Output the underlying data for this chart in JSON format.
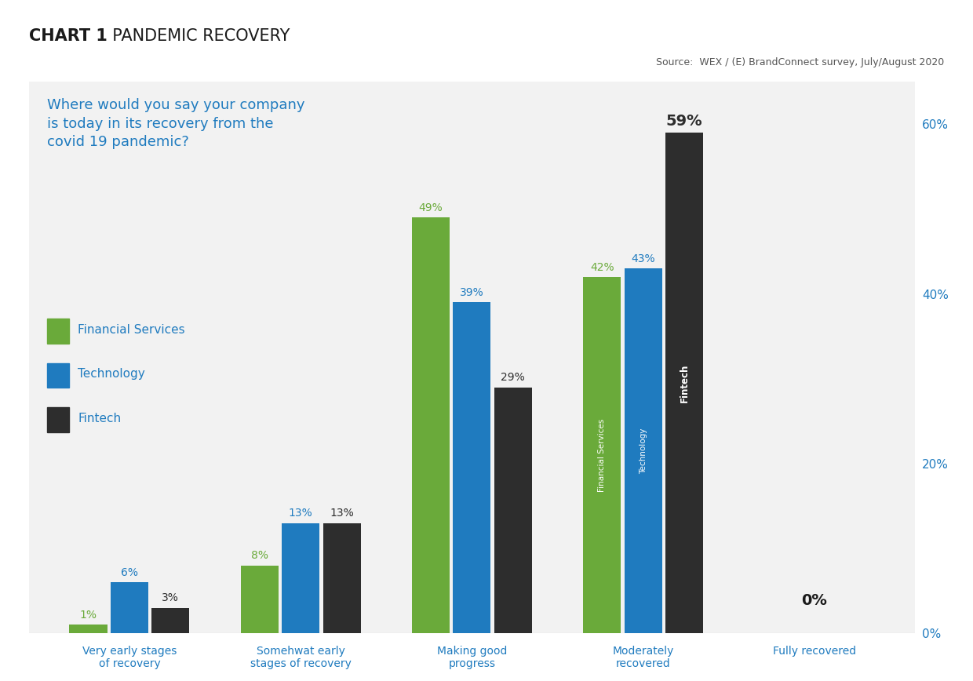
{
  "title_bold": "CHART 1",
  "title_regular": "  PANDEMIC RECOVERY",
  "source": "Source:  WEX / (E) BrandConnect survey, July/August 2020",
  "question": "Where would you say your company\nis today in its recovery from the\ncovid 19 pandemic?",
  "categories": [
    "Very early stages\nof recovery",
    "Somehwat early\nstages of recovery",
    "Making good\nprogress",
    "Moderately\nrecovered",
    "Fully recovered"
  ],
  "financial_services": [
    1,
    8,
    49,
    42,
    0
  ],
  "technology": [
    6,
    13,
    39,
    43,
    0
  ],
  "fintech": [
    3,
    13,
    29,
    59,
    0
  ],
  "colors": {
    "financial_services": "#6aaa3a",
    "technology": "#1f7bbf",
    "fintech": "#2d2d2d",
    "background": "#f2f2f2",
    "title_bg": "#ffffff",
    "question_color": "#1f7bbf",
    "axis_label_color": "#1f7bbf",
    "legend_label_color": "#1f7bbf",
    "label_fs_color": "#6aaa3a",
    "label_tech_color": "#1f7bbf",
    "label_fintech_color": "#2d2d2d",
    "bar_label_color": "#333333"
  },
  "legend_labels": [
    "Financial Services",
    "Technology",
    "Fintech"
  ],
  "ylim": [
    0,
    65
  ],
  "yticks": [
    0,
    20,
    40,
    60
  ],
  "ytick_labels": [
    "0%",
    "20%",
    "40%",
    "60%"
  ]
}
